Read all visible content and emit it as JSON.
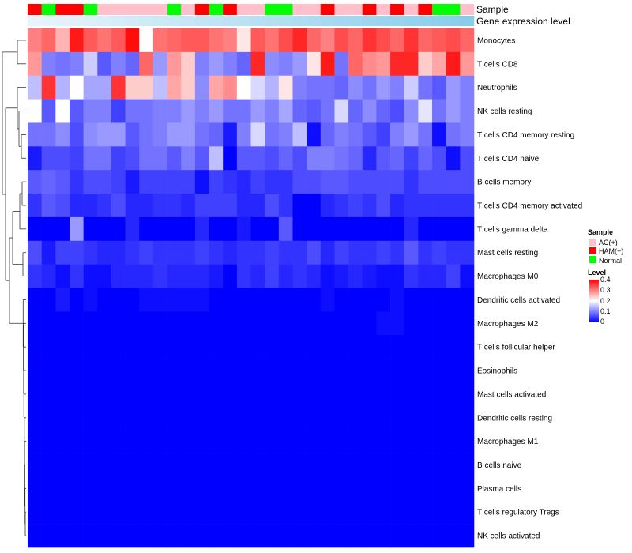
{
  "chart_data": {
    "type": "heatmap",
    "annotation_labels": [
      "Sample",
      "Gene expression level"
    ],
    "columns": 32,
    "sample_groups": [
      "HAM(+)",
      "Normal",
      "HAM(+)",
      "HAM(+)",
      "Normal",
      "AC(+)",
      "AC(+)",
      "AC(+)",
      "AC(+)",
      "AC(+)",
      "Normal",
      "AC(+)",
      "HAM(+)",
      "Normal",
      "HAM(+)",
      "AC(+)",
      "AC(+)",
      "Normal",
      "Normal",
      "AC(+)",
      "AC(+)",
      "HAM(+)",
      "AC(+)",
      "AC(+)",
      "HAM(+)",
      "AC(+)",
      "HAM(+)",
      "AC(+)",
      "HAM(+)",
      "Normal",
      "Normal",
      "AC(+)"
    ],
    "sample_colors": {
      "AC(+)": "#FFC0CB",
      "HAM(+)": "#FF0000",
      "Normal": "#00FF00"
    },
    "gene_expression_colors": {
      "low": "#E8F4FB",
      "high": "#87CEEB"
    },
    "rows": [
      {
        "label": "Monocytes",
        "values": [
          0.3,
          0.32,
          0.26,
          0.38,
          0.33,
          0.31,
          0.33,
          0.39,
          0.2,
          0.31,
          0.32,
          0.33,
          0.33,
          0.31,
          0.3,
          0.22,
          0.33,
          0.31,
          0.34,
          0.37,
          0.32,
          0.3,
          0.34,
          0.32,
          0.36,
          0.34,
          0.32,
          0.36,
          0.32,
          0.33,
          0.34,
          0.32
        ]
      },
      {
        "label": "T cells CD8",
        "values": [
          0.28,
          0.1,
          0.09,
          0.1,
          0.16,
          0.07,
          0.1,
          0.08,
          0.32,
          0.12,
          0.28,
          0.24,
          0.1,
          0.12,
          0.1,
          0.08,
          0.37,
          0.11,
          0.1,
          0.12,
          0.22,
          0.38,
          0.09,
          0.32,
          0.29,
          0.28,
          0.37,
          0.37,
          0.24,
          0.27,
          0.38,
          0.28
        ]
      },
      {
        "label": "Neutrophils",
        "values": [
          0.15,
          0.36,
          0.14,
          0.2,
          0.13,
          0.13,
          0.36,
          0.24,
          0.24,
          0.15,
          0.27,
          0.24,
          0.11,
          0.27,
          0.29,
          0.2,
          0.17,
          0.14,
          0.22,
          0.1,
          0.09,
          0.09,
          0.08,
          0.11,
          0.09,
          0.12,
          0.1,
          0.16,
          0.09,
          0.07,
          0.12,
          0.1
        ]
      },
      {
        "label": "NK cells resting",
        "values": [
          0.2,
          0.07,
          0.2,
          0.07,
          0.1,
          0.1,
          0.05,
          0.09,
          0.09,
          0.1,
          0.1,
          0.12,
          0.1,
          0.12,
          0.09,
          0.09,
          0.12,
          0.1,
          0.13,
          0.08,
          0.07,
          0.09,
          0.17,
          0.08,
          0.11,
          0.08,
          0.06,
          0.11,
          0.18,
          0.09,
          0.12,
          0.1
        ]
      },
      {
        "label": "T cells CD4 memory resting",
        "values": [
          0.09,
          0.09,
          0.11,
          0.06,
          0.11,
          0.12,
          0.12,
          0.07,
          0.09,
          0.1,
          0.12,
          0.12,
          0.09,
          0.08,
          0.02,
          0.1,
          0.17,
          0.09,
          0.1,
          0.15,
          0.01,
          0.08,
          0.1,
          0.09,
          0.07,
          0.05,
          0.1,
          0.12,
          0.09,
          0.01,
          0.09,
          0.1
        ]
      },
      {
        "label": "T cells CD4 naive",
        "values": [
          0.02,
          0.06,
          0.06,
          0.05,
          0.09,
          0.09,
          0.05,
          0.06,
          0.09,
          0.09,
          0.07,
          0.1,
          0.07,
          0.15,
          0.0,
          0.07,
          0.07,
          0.06,
          0.08,
          0.06,
          0.1,
          0.1,
          0.09,
          0.08,
          0.03,
          0.07,
          0.08,
          0.05,
          0.08,
          0.06,
          0.01,
          0.06
        ]
      },
      {
        "label": "B cells memory",
        "values": [
          0.07,
          0.08,
          0.07,
          0.04,
          0.06,
          0.06,
          0.05,
          0.02,
          0.05,
          0.05,
          0.05,
          0.05,
          0.01,
          0.05,
          0.04,
          0.03,
          0.05,
          0.04,
          0.04,
          0.06,
          0.06,
          0.07,
          0.07,
          0.06,
          0.06,
          0.06,
          0.06,
          0.04,
          0.06,
          0.06,
          0.06,
          0.06
        ]
      },
      {
        "label": "T cells CD4 memory activated",
        "values": [
          0.04,
          0.07,
          0.06,
          0.03,
          0.03,
          0.04,
          0.06,
          0.03,
          0.03,
          0.04,
          0.04,
          0.03,
          0.05,
          0.05,
          0.05,
          0.03,
          0.03,
          0.06,
          0.04,
          0.0,
          0.0,
          0.03,
          0.04,
          0.05,
          0.04,
          0.06,
          0.03,
          0.04,
          0.04,
          0.04,
          0.04,
          0.04
        ]
      },
      {
        "label": "T cells gamma delta",
        "values": [
          0.0,
          0.0,
          0.0,
          0.12,
          0.0,
          0.0,
          0.0,
          0.03,
          0.0,
          0.0,
          0.0,
          0.0,
          0.03,
          0.0,
          0.0,
          0.02,
          0.0,
          0.0,
          0.07,
          0.0,
          0.0,
          0.0,
          0.0,
          0.0,
          0.0,
          0.0,
          0.0,
          0.03,
          0.0,
          0.0,
          0.0,
          0.0
        ]
      },
      {
        "label": "Mast cells resting",
        "values": [
          0.06,
          0.02,
          0.05,
          0.05,
          0.04,
          0.03,
          0.03,
          0.04,
          0.05,
          0.04,
          0.04,
          0.04,
          0.05,
          0.04,
          0.03,
          0.04,
          0.04,
          0.05,
          0.04,
          0.04,
          0.06,
          0.03,
          0.05,
          0.04,
          0.04,
          0.05,
          0.04,
          0.07,
          0.04,
          0.05,
          0.04,
          0.04
        ]
      },
      {
        "label": "Macrophages M0",
        "values": [
          0.04,
          0.03,
          0.01,
          0.04,
          0.01,
          0.01,
          0.03,
          0.03,
          0.03,
          0.04,
          0.03,
          0.03,
          0.03,
          0.02,
          0.0,
          0.04,
          0.03,
          0.05,
          0.03,
          0.04,
          0.03,
          0.01,
          0.02,
          0.03,
          0.02,
          0.01,
          0.01,
          0.04,
          0.03,
          0.03,
          0.05,
          0.01
        ]
      },
      {
        "label": "Dendritic cells activated",
        "values": [
          0.0,
          0.0,
          0.02,
          0.0,
          0.01,
          0.0,
          0.0,
          0.0,
          0.01,
          0.01,
          0.01,
          0.01,
          0.01,
          0.0,
          0.0,
          0.0,
          0.0,
          0.0,
          0.0,
          0.0,
          0.0,
          0.01,
          0.0,
          0.0,
          0.0,
          0.0,
          0.01,
          0.0,
          0.0,
          0.0,
          0.0,
          0.0
        ]
      },
      {
        "label": "Macrophages M2",
        "values": [
          0.0,
          0.0,
          0.0,
          0.0,
          0.0,
          0.0,
          0.0,
          0.0,
          0.0,
          0.0,
          0.0,
          0.0,
          0.0,
          0.0,
          0.0,
          0.0,
          0.0,
          0.0,
          0.0,
          0.0,
          0.0,
          0.0,
          0.0,
          0.0,
          0.0,
          0.01,
          0.01,
          0.0,
          0.0,
          0.0,
          0.0,
          0.0
        ]
      },
      {
        "label": "T cells follicular helper",
        "values": [
          0.0,
          0.0,
          0.0,
          0.0,
          0.0,
          0.0,
          0.0,
          0.0,
          0.0,
          0.0,
          0.0,
          0.0,
          0.0,
          0.0,
          0.0,
          0.0,
          0.0,
          0.0,
          0.0,
          0.0,
          0.0,
          0.0,
          0.0,
          0.0,
          0.0,
          0.0,
          0.0,
          0.0,
          0.0,
          0.0,
          0.0,
          0.0
        ]
      },
      {
        "label": "Eosinophils",
        "values": [
          0.0,
          0.0,
          0.0,
          0.0,
          0.0,
          0.0,
          0.0,
          0.0,
          0.0,
          0.0,
          0.0,
          0.0,
          0.0,
          0.0,
          0.0,
          0.0,
          0.0,
          0.0,
          0.0,
          0.0,
          0.0,
          0.0,
          0.0,
          0.0,
          0.0,
          0.0,
          0.0,
          0.0,
          0.0,
          0.0,
          0.0,
          0.0
        ]
      },
      {
        "label": "Mast cells activated",
        "values": [
          0.0,
          0.0,
          0.0,
          0.0,
          0.0,
          0.0,
          0.0,
          0.0,
          0.0,
          0.0,
          0.0,
          0.0,
          0.0,
          0.0,
          0.0,
          0.0,
          0.0,
          0.0,
          0.0,
          0.0,
          0.0,
          0.0,
          0.0,
          0.0,
          0.0,
          0.0,
          0.0,
          0.0,
          0.0,
          0.0,
          0.0,
          0.0
        ]
      },
      {
        "label": "Dendritic cells resting",
        "values": [
          0.0,
          0.0,
          0.0,
          0.0,
          0.0,
          0.0,
          0.0,
          0.0,
          0.0,
          0.0,
          0.0,
          0.0,
          0.0,
          0.0,
          0.0,
          0.0,
          0.0,
          0.0,
          0.0,
          0.0,
          0.0,
          0.0,
          0.0,
          0.0,
          0.0,
          0.0,
          0.0,
          0.0,
          0.0,
          0.0,
          0.0,
          0.0
        ]
      },
      {
        "label": "Macrophages M1",
        "values": [
          0.0,
          0.0,
          0.0,
          0.0,
          0.0,
          0.0,
          0.0,
          0.0,
          0.0,
          0.0,
          0.0,
          0.0,
          0.0,
          0.0,
          0.0,
          0.0,
          0.0,
          0.0,
          0.0,
          0.0,
          0.0,
          0.0,
          0.0,
          0.0,
          0.0,
          0.0,
          0.0,
          0.0,
          0.0,
          0.0,
          0.0,
          0.0
        ]
      },
      {
        "label": "B cells naive",
        "values": [
          0.0,
          0.0,
          0.0,
          0.0,
          0.0,
          0.0,
          0.0,
          0.0,
          0.0,
          0.0,
          0.0,
          0.0,
          0.0,
          0.0,
          0.0,
          0.0,
          0.0,
          0.0,
          0.0,
          0.0,
          0.0,
          0.0,
          0.0,
          0.0,
          0.0,
          0.0,
          0.0,
          0.0,
          0.0,
          0.0,
          0.0,
          0.0
        ]
      },
      {
        "label": "Plasma cells",
        "values": [
          0.0,
          0.0,
          0.0,
          0.0,
          0.0,
          0.0,
          0.0,
          0.0,
          0.0,
          0.0,
          0.0,
          0.0,
          0.0,
          0.0,
          0.0,
          0.0,
          0.0,
          0.0,
          0.0,
          0.0,
          0.0,
          0.0,
          0.0,
          0.0,
          0.0,
          0.0,
          0.0,
          0.0,
          0.0,
          0.0,
          0.0,
          0.0
        ]
      },
      {
        "label": "T cells regulatory  Tregs",
        "values": [
          0.0,
          0.0,
          0.0,
          0.0,
          0.0,
          0.0,
          0.0,
          0.0,
          0.0,
          0.0,
          0.0,
          0.0,
          0.0,
          0.0,
          0.0,
          0.0,
          0.0,
          0.0,
          0.0,
          0.0,
          0.0,
          0.0,
          0.0,
          0.0,
          0.0,
          0.0,
          0.0,
          0.0,
          0.0,
          0.0,
          0.0,
          0.0
        ]
      },
      {
        "label": "NK cells activated",
        "values": [
          0.0,
          0.0,
          0.0,
          0.0,
          0.0,
          0.0,
          0.0,
          0.0,
          0.0,
          0.0,
          0.0,
          0.0,
          0.0,
          0.0,
          0.0,
          0.0,
          0.0,
          0.0,
          0.0,
          0.0,
          0.0,
          0.0,
          0.0,
          0.0,
          0.0,
          0.0,
          0.0,
          0.0,
          0.0,
          0.0,
          0.0,
          0.0
        ]
      }
    ],
    "color_scale": {
      "min": 0,
      "mid": 0.2,
      "max": 0.4,
      "low_color": "#0000FF",
      "mid_color": "#FFFFFF",
      "high_color": "#FF0000"
    },
    "legend": {
      "sample_title": "Sample",
      "sample_entries": [
        "AC(+)",
        "HAM(+)",
        "Normal"
      ],
      "level_title": "Level",
      "level_ticks": [
        "0.4",
        "0.3",
        "0.2",
        "0.1",
        "0"
      ],
      "placement": "right"
    }
  }
}
